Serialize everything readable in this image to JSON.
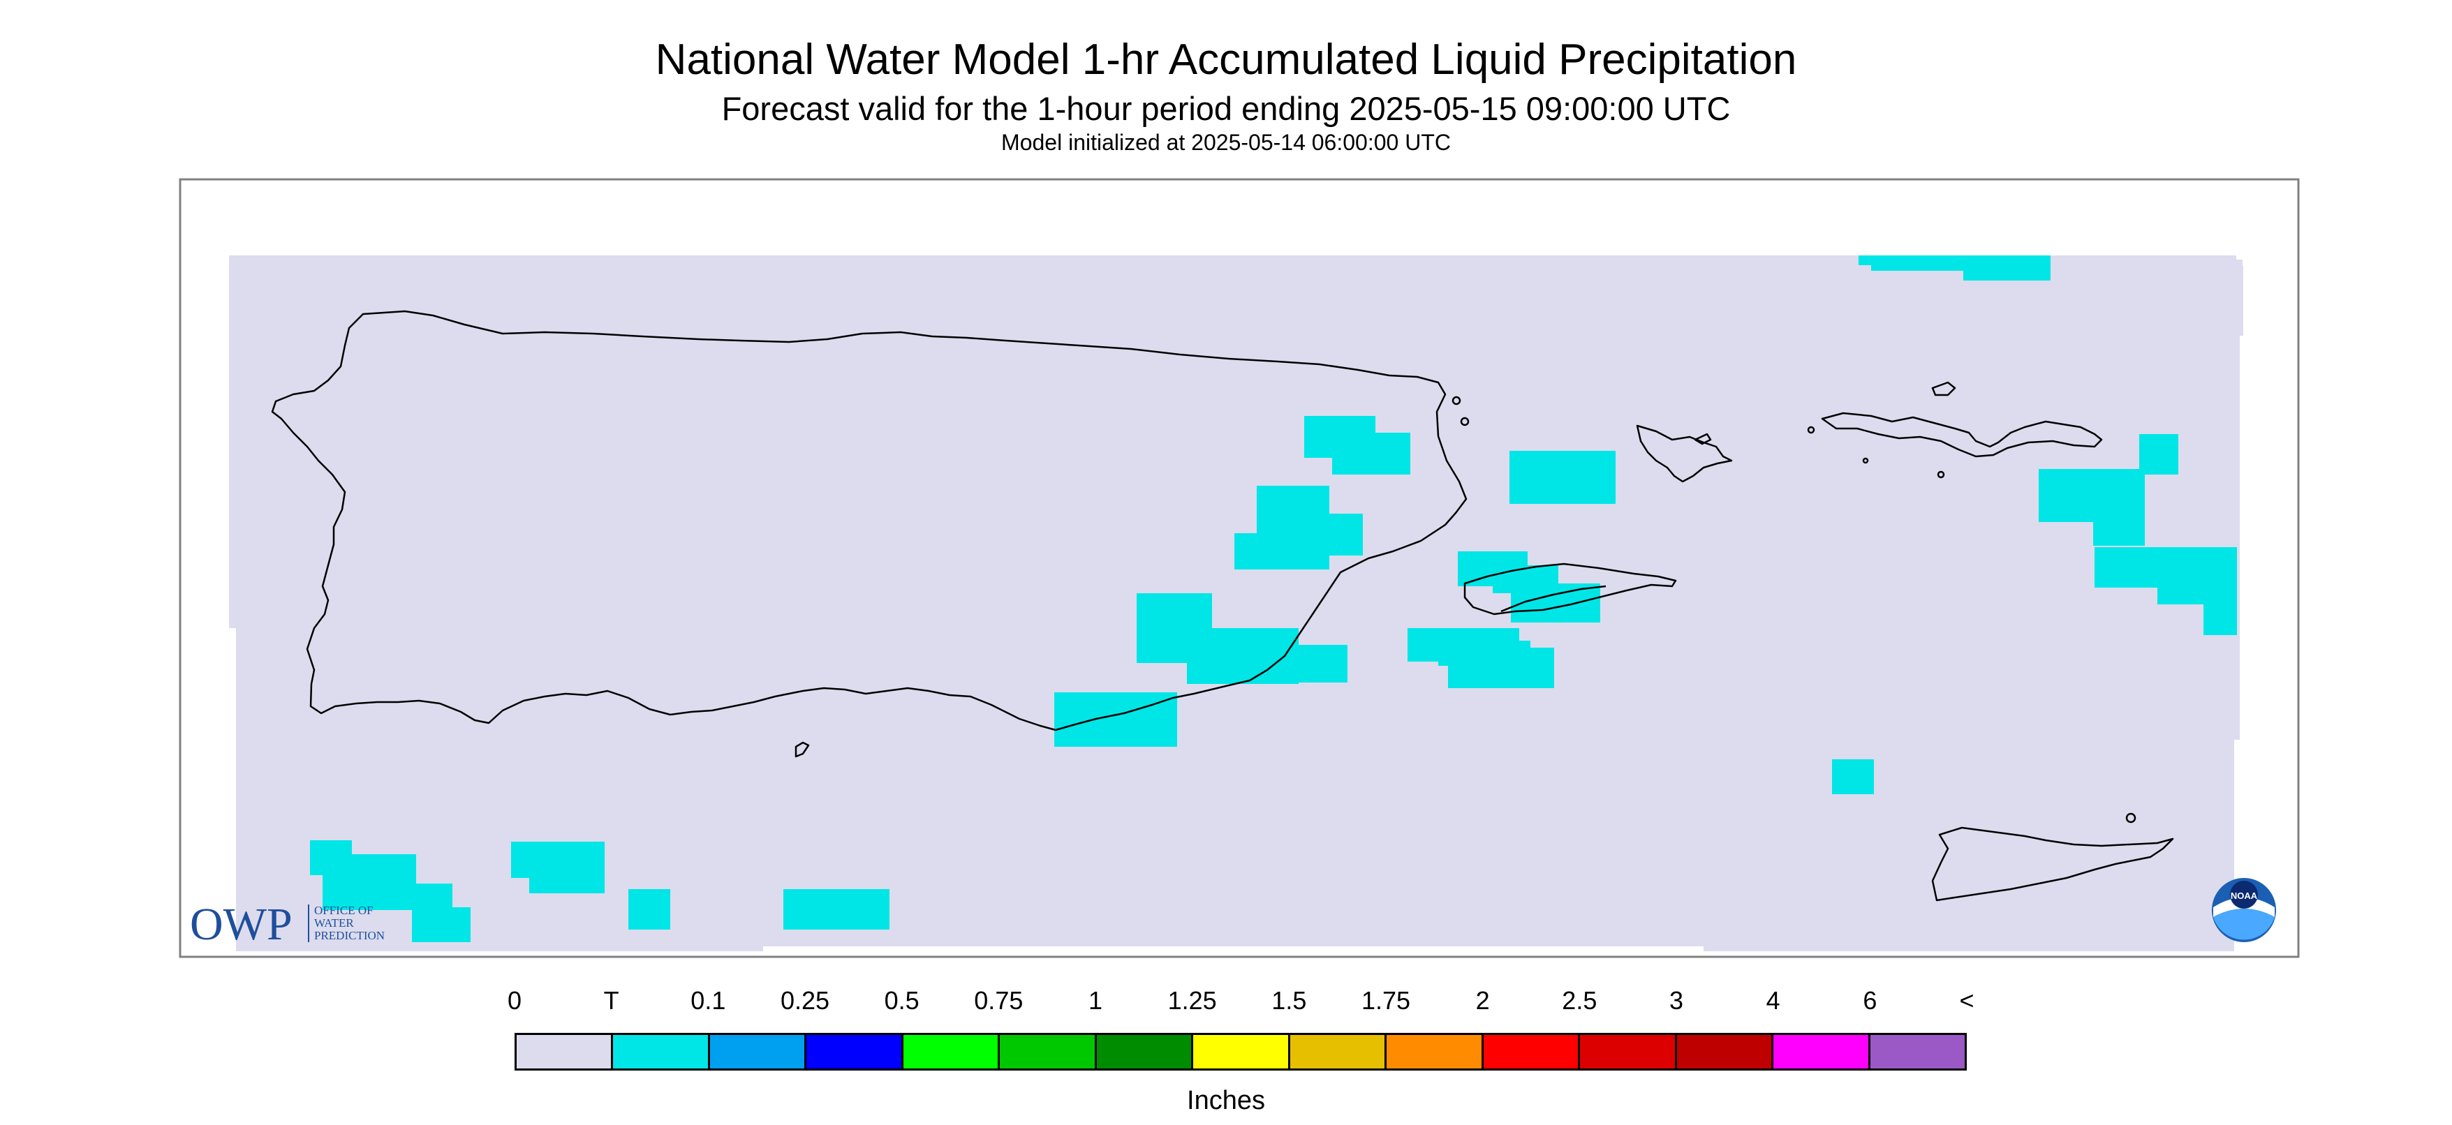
{
  "header": {
    "title": "National Water Model 1-hr Accumulated Liquid Precipitation",
    "subtitle": "Forecast valid for the 1-hour period ending 2025-05-15 09:00:00 UTC",
    "init_line": "Model initialized at 2025-05-14 06:00:00 UTC"
  },
  "map": {
    "background_color": "#dcdcee",
    "precip_color": "#00e6e6",
    "coastline_color": "#000000",
    "owp_logo": {
      "letters": "OWP",
      "line1": "OFFICE OF",
      "line2": "WATER",
      "line3": "PREDICTION",
      "color": "#1f4e9c"
    },
    "noaa_logo": {
      "text": "NOAA"
    }
  },
  "legend": {
    "labels": [
      "0",
      "T",
      "0.1",
      "0.25",
      "0.5",
      "0.75",
      "1",
      "1.25",
      "1.5",
      "1.75",
      "2",
      "2.5",
      "3",
      "4",
      "6",
      "<"
    ],
    "colors": [
      "#dcdcee",
      "#00e6e6",
      "#00a0f0",
      "#0000ff",
      "#00ff00",
      "#00c800",
      "#008c00",
      "#ffff00",
      "#e6c000",
      "#ff8c00",
      "#ff0000",
      "#dc0000",
      "#be0000",
      "#ff00ff",
      "#9b59c6"
    ],
    "units_label": "Inches"
  }
}
